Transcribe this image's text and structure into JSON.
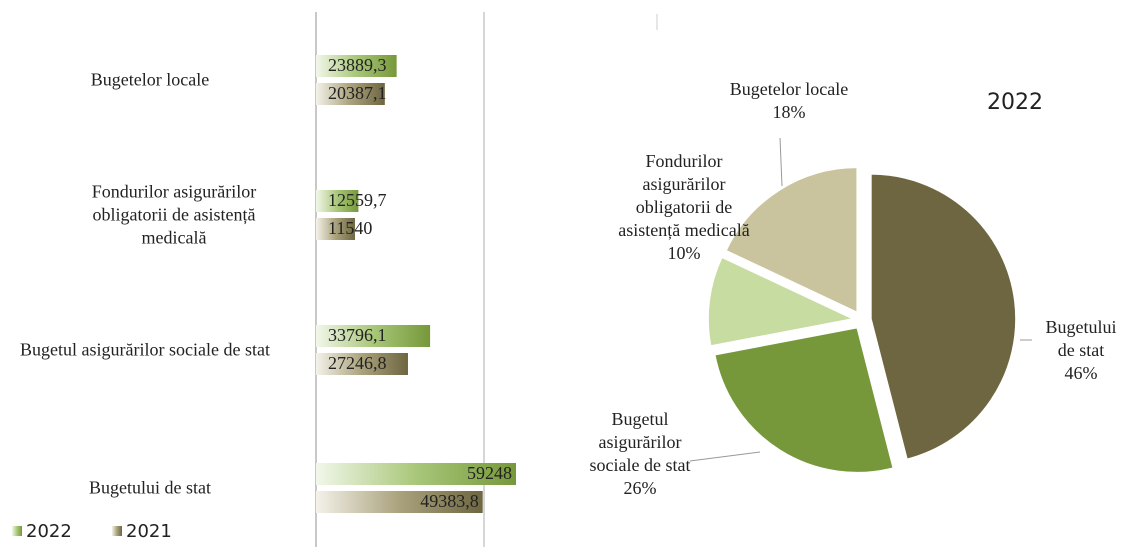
{
  "chart_data": [
    {
      "type": "hbar",
      "categories": [
        "Bugetelor locale",
        "Fondurilor asigurărilor obligatorii de asistență medicală",
        "Bugetul asigurărilor sociale de stat",
        "Bugetului de stat"
      ],
      "series": [
        {
          "name": "2022",
          "color": "#76983a",
          "values": [
            23889.3,
            12559.7,
            33796.1,
            59248
          ],
          "value_labels": [
            "23889,3",
            "12559,7",
            "33796,1",
            "59248"
          ]
        },
        {
          "name": "2021",
          "color": "#6e6640",
          "values": [
            20387.1,
            11540,
            27246.8,
            49383.8
          ],
          "value_labels": [
            "20387,1",
            "11540",
            "27246,8",
            "49383,8"
          ]
        }
      ],
      "legend": "bottom-left"
    },
    {
      "type": "pie",
      "title": "2022",
      "categories": [
        "Bugetului de stat",
        "Bugetul asigurărilor sociale de stat",
        "Fondurilor asigurărilor obligatorii de asistență medicală",
        "Bugetelor locale"
      ],
      "values": [
        46,
        26,
        10,
        18
      ],
      "value_labels": [
        "46%",
        "26%",
        "10%",
        "18%"
      ],
      "colors": [
        "#6e6640",
        "#76983a",
        "#c6dca0",
        "#c9c39e"
      ]
    }
  ]
}
